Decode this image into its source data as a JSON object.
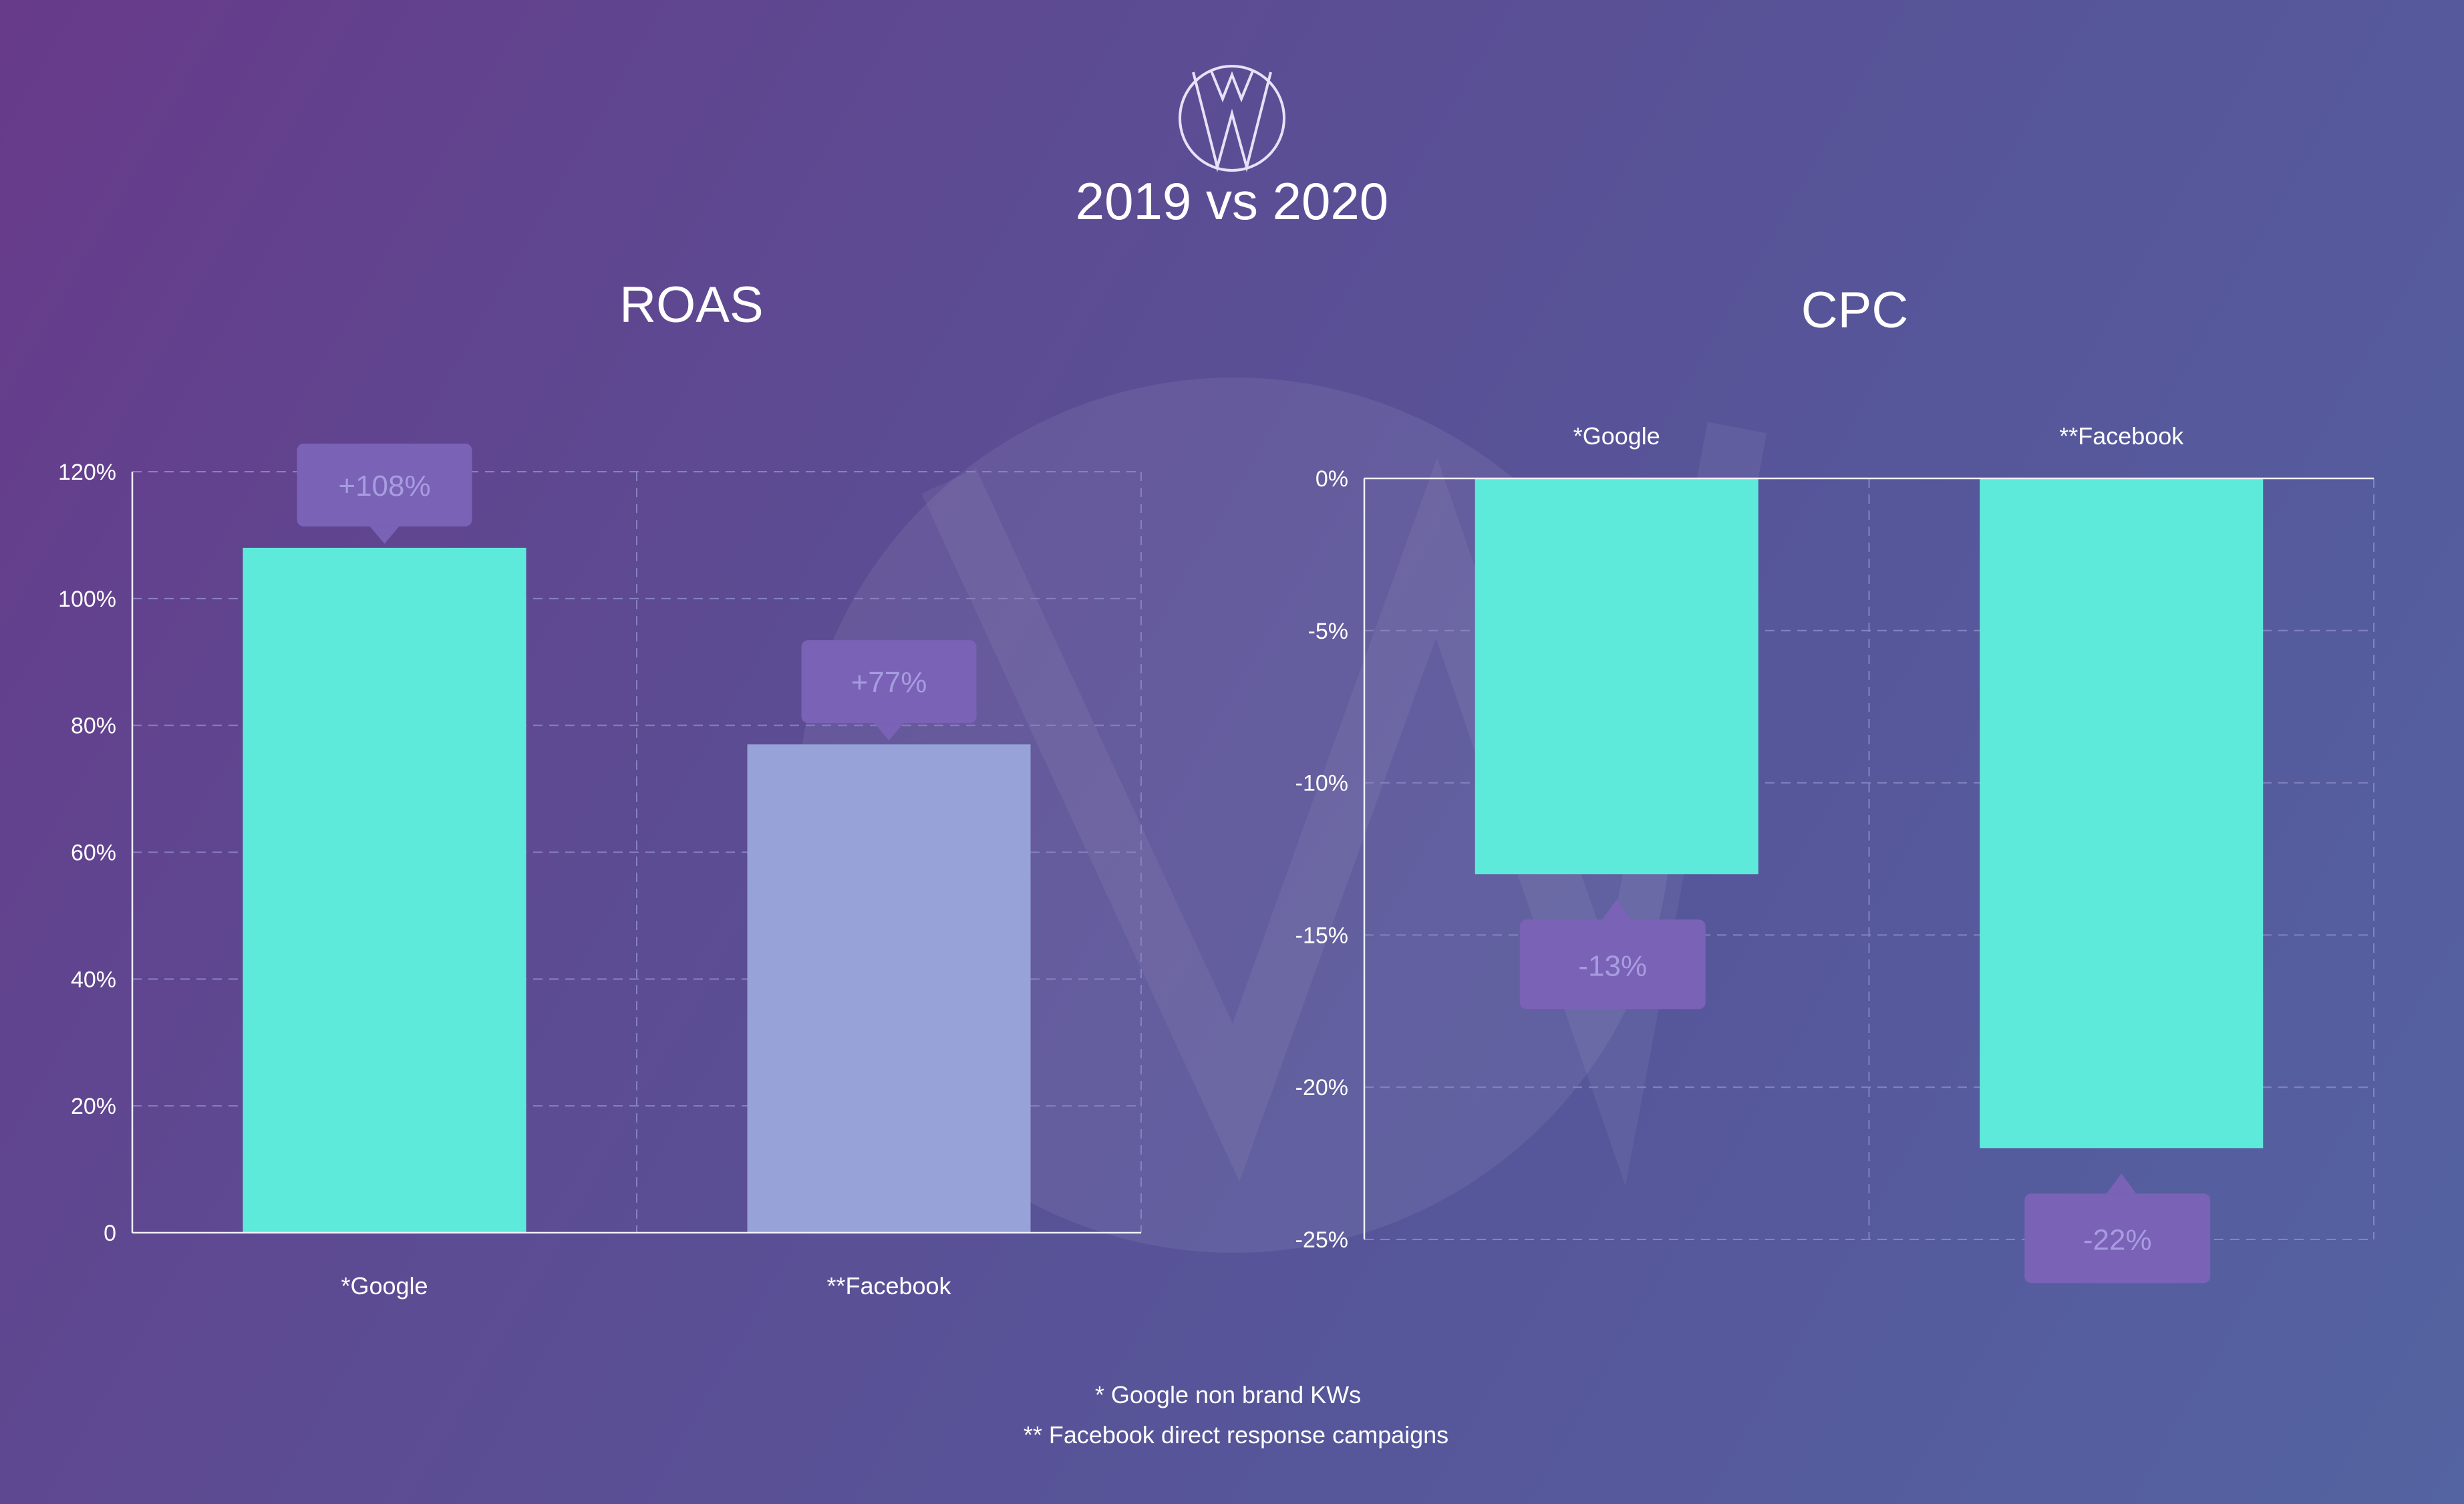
{
  "header": {
    "title": "2019 vs 2020"
  },
  "colors": {
    "teal": "#5eeadb",
    "lavender": "#97a3d8",
    "callout_bg": "#7a62b6",
    "callout_text": "#a79ce0",
    "grid": "#8682c0",
    "axis": "#f0f0ff",
    "text": "#ffffff"
  },
  "footnotes": [
    "* Google non brand KWs",
    "** Facebook direct response campaigns"
  ],
  "chart_data": [
    {
      "type": "bar",
      "title": "ROAS",
      "categories": [
        "*Google",
        "**Facebook"
      ],
      "values": [
        108,
        77
      ],
      "value_labels": [
        "+108%",
        "+77%"
      ],
      "bar_colors": [
        "#5eeadb",
        "#97a3d8"
      ],
      "ylim": [
        0,
        120
      ],
      "yticks": [
        0,
        20,
        40,
        60,
        80,
        100,
        120
      ],
      "ytick_labels": [
        "0",
        "20%",
        "40%",
        "60%",
        "80%",
        "100%",
        "120%"
      ],
      "category_axis": "bottom",
      "grid": true
    },
    {
      "type": "bar",
      "title": "CPC",
      "categories": [
        "*Google",
        "**Facebook"
      ],
      "values": [
        -13,
        -22
      ],
      "value_labels": [
        "-13%",
        "-22%"
      ],
      "bar_colors": [
        "#5eeadb",
        "#5eeadb"
      ],
      "ylim": [
        -25,
        0
      ],
      "yticks": [
        0,
        -5,
        -10,
        -15,
        -20,
        -25
      ],
      "ytick_labels": [
        "0%",
        "-5%",
        "-10%",
        "-15%",
        "-20%",
        "-25%"
      ],
      "category_axis": "top",
      "grid": true
    }
  ]
}
